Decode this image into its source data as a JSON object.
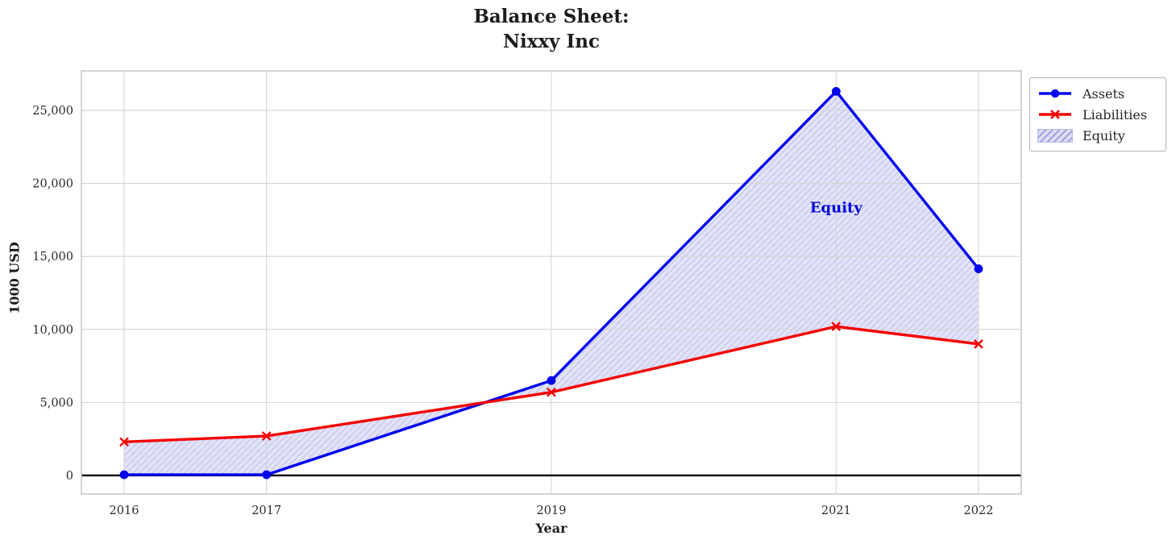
{
  "title": "Balance Sheet:\nNixxy Inc",
  "axes": {
    "xlabel": "Year",
    "ylabel": "1000 USD"
  },
  "legend": {
    "items": [
      {
        "label": "Assets"
      },
      {
        "label": "Liabilities"
      },
      {
        "label": "Equity"
      }
    ]
  },
  "annotation": {
    "text": "Equity"
  },
  "chart_data": {
    "type": "line",
    "title": "Balance Sheet: Nixxy Inc",
    "xlabel": "Year",
    "ylabel": "1000 USD",
    "x": [
      2016,
      2017,
      2019,
      2021,
      2022
    ],
    "series": [
      {
        "name": "Assets",
        "color": "#0000ee",
        "marker": "circle",
        "values": [
          50,
          50,
          6500,
          26300,
          14150
        ]
      },
      {
        "name": "Liabilities",
        "color": "#f50000",
        "marker": "x",
        "values": [
          2300,
          2700,
          5700,
          10200,
          9000
        ]
      }
    ],
    "fill_between": {
      "name": "Equity",
      "between": [
        "Assets",
        "Liabilities"
      ],
      "fill_color": "#e3e3f8",
      "hatch_color": "#c6c9f1"
    },
    "xticks": {
      "values": [
        2016,
        2017,
        2019,
        2021,
        2022
      ],
      "labels": [
        "2016",
        "2017",
        "2019",
        "2021",
        "2022"
      ]
    },
    "yticks": {
      "values": [
        0,
        5000,
        10000,
        15000,
        20000,
        25000
      ],
      "labels": [
        "0",
        "5,000",
        "10,000",
        "15,000",
        "20,000",
        "25,000"
      ]
    },
    "xlim": [
      2015.7,
      2022.3
    ],
    "ylim": [
      -1270,
      27700
    ],
    "zero_line": true,
    "grid": true,
    "grid_color": "#d4d4d4",
    "frame_color": "#c2c2c2",
    "tick_label_color": "#2b2b2b",
    "annotation": {
      "text": "Equity",
      "x": 2021,
      "y": 18300,
      "color": "#0000e0"
    },
    "legend_position": "outside-top-right"
  }
}
